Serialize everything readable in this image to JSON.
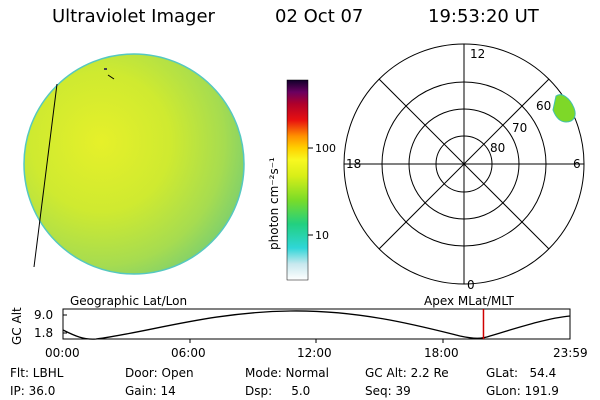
{
  "header": {
    "title": "Ultraviolet Imager",
    "date": "02 Oct 07",
    "time": "19:53:20 UT"
  },
  "colorbar": {
    "unit_label": "photon cm⁻²s⁻¹",
    "ticks": [
      "100",
      "10"
    ]
  },
  "polar": {
    "mlt_labels": {
      "top": "12",
      "left": "18",
      "right": "6",
      "bottom": "0"
    },
    "lat_labels": [
      "60",
      "70",
      "80"
    ]
  },
  "alt_plot": {
    "left_title": "Geographic Lat/Lon",
    "right_title": "Apex MLat/MLT",
    "ylabel": "GC Alt",
    "yticks": [
      "9.0",
      "1.8"
    ],
    "xticks": [
      "00:00",
      "06:00",
      "12:00",
      "18:00",
      "23:59"
    ],
    "current_time_hours": 19.89
  },
  "info": {
    "flt": "Flt: LBHL",
    "ip": "IP: 36.0",
    "door": "Door: Open",
    "gain": "Gain: 14",
    "mode": "Mode: Normal",
    "dsp": "Dsp:     5.0",
    "gc_alt": "GC Alt: 2.2 Re",
    "seq": "Seq: 39",
    "glat": "GLat:   54.4",
    "glon": "GLon: 191.9"
  },
  "colors": {
    "marker": "#d00000"
  }
}
